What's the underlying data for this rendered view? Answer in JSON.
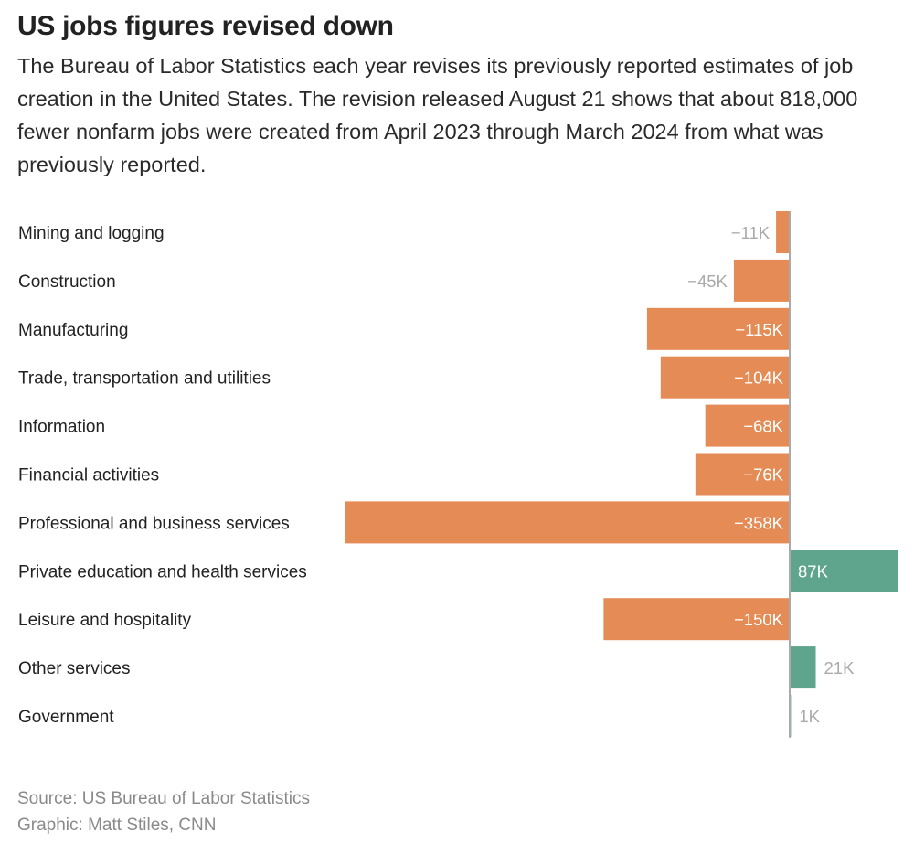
{
  "title": "US jobs figures revised down",
  "subtitle": "The Bureau of Labor Statistics each year revises its previously reported estimates of job creation in the United States. The revision released August 21 shows that about 818,000 fewer nonfarm jobs were created from April 2023 through March 2024 from what was previously reported.",
  "source": "Source: US Bureau of Labor Statistics",
  "credit": "Graphic: Matt Stiles, CNN",
  "chart_data": {
    "type": "bar",
    "orientation": "horizontal",
    "categories": [
      "Mining and logging",
      "Construction",
      "Manufacturing",
      "Trade, transportation and utilities",
      "Information",
      "Financial activities",
      "Professional and business services",
      "Private education and health services",
      "Leisure and hospitality",
      "Other services",
      "Government"
    ],
    "values": [
      -11,
      -45,
      -115,
      -104,
      -68,
      -76,
      -358,
      87,
      -150,
      21,
      1
    ],
    "value_labels": [
      "−11K",
      "−45K",
      "−115K",
      "−104K",
      "−68K",
      "−76K",
      "−358K",
      "87K",
      "−150K",
      "21K",
      "1K"
    ],
    "units": "thousands of jobs",
    "colors": {
      "negative": "#E58B56",
      "positive": "#5FA48D",
      "axis": "#aaaaaa"
    },
    "grid": false
  }
}
